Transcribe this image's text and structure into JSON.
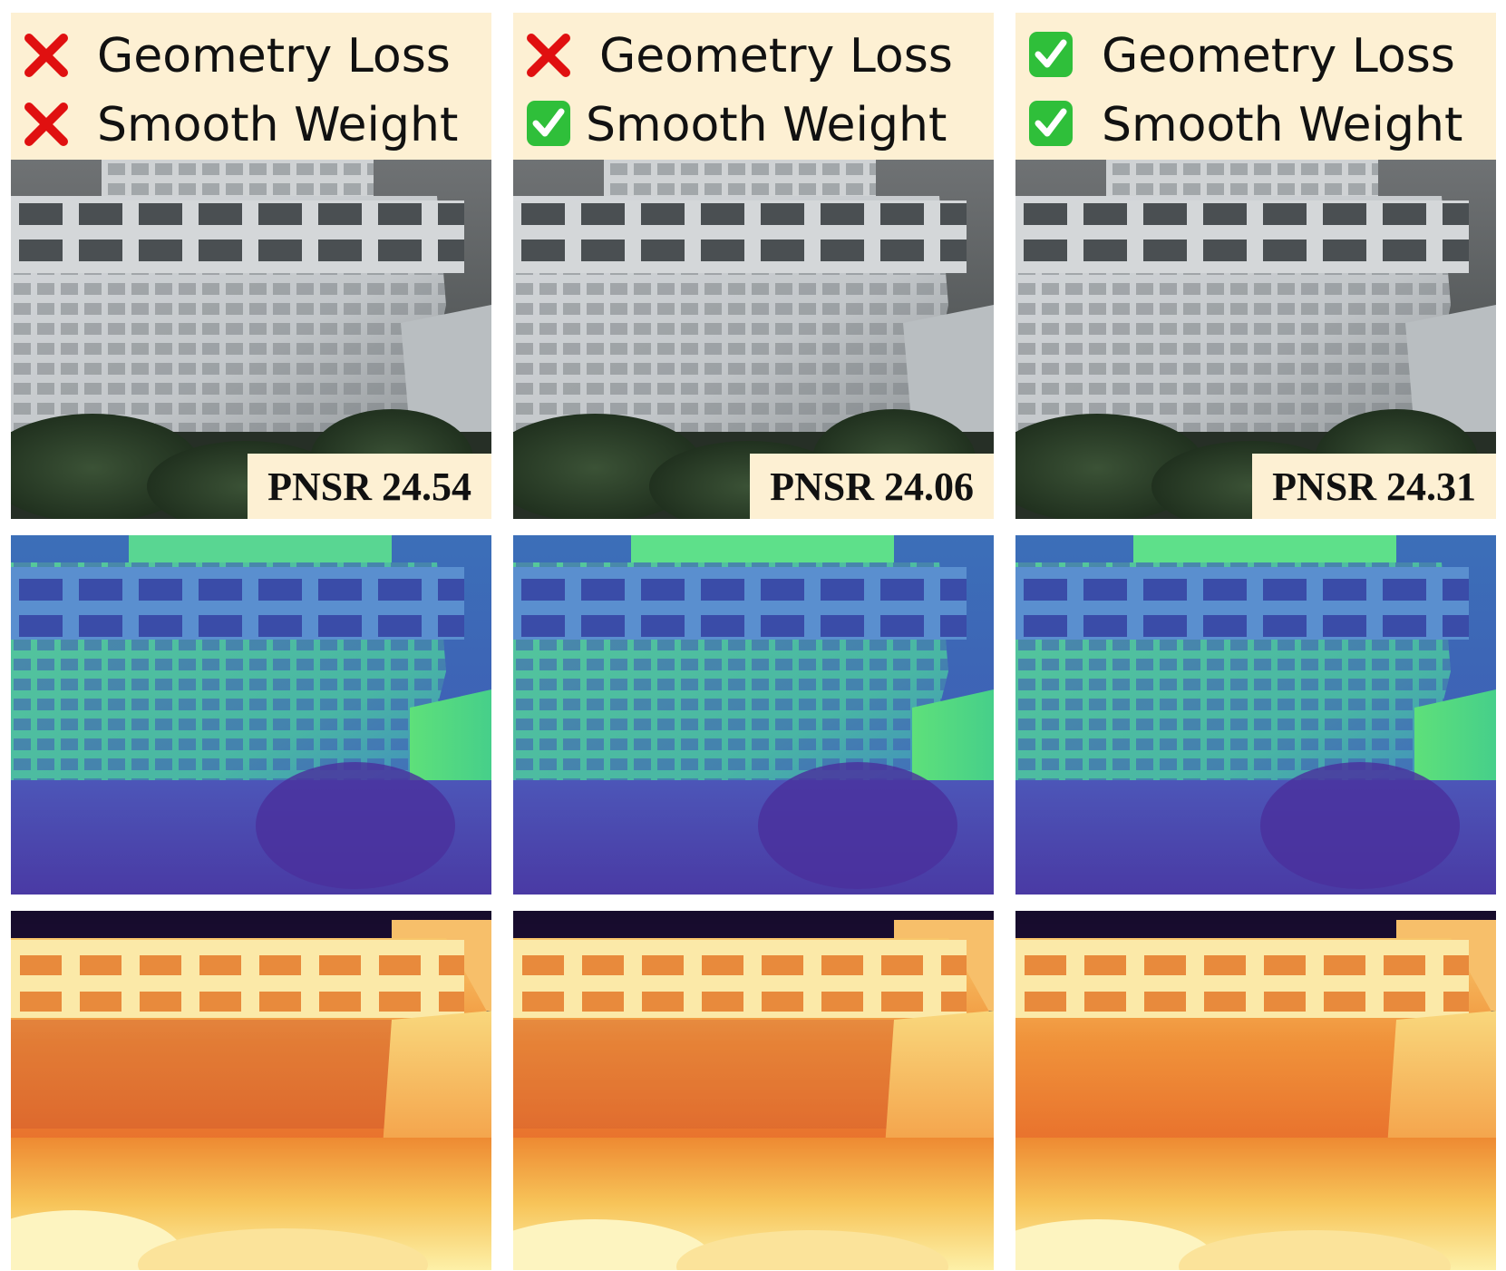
{
  "columns": [
    {
      "geometry_loss": {
        "label": "Geometry Loss",
        "enabled": false,
        "icon": "red-cross-icon"
      },
      "smooth_weight": {
        "label": "Smooth Weight",
        "enabled": false,
        "icon": "red-cross-icon"
      },
      "metric": "PNSR 24.54"
    },
    {
      "geometry_loss": {
        "label": "Geometry Loss",
        "enabled": false,
        "icon": "red-cross-icon"
      },
      "smooth_weight": {
        "label": "Smooth Weight",
        "enabled": true,
        "icon": "green-check-icon"
      },
      "metric": "PNSR 24.06"
    },
    {
      "geometry_loss": {
        "label": "Geometry Loss",
        "enabled": true,
        "icon": "green-check-icon"
      },
      "smooth_weight": {
        "label": "Smooth Weight",
        "enabled": true,
        "icon": "green-check-icon"
      },
      "metric": "PNSR 24.31"
    }
  ],
  "colors": {
    "header_bg": "#fdf0d3",
    "cross": "#e01010",
    "check": "#2fbf3a"
  }
}
